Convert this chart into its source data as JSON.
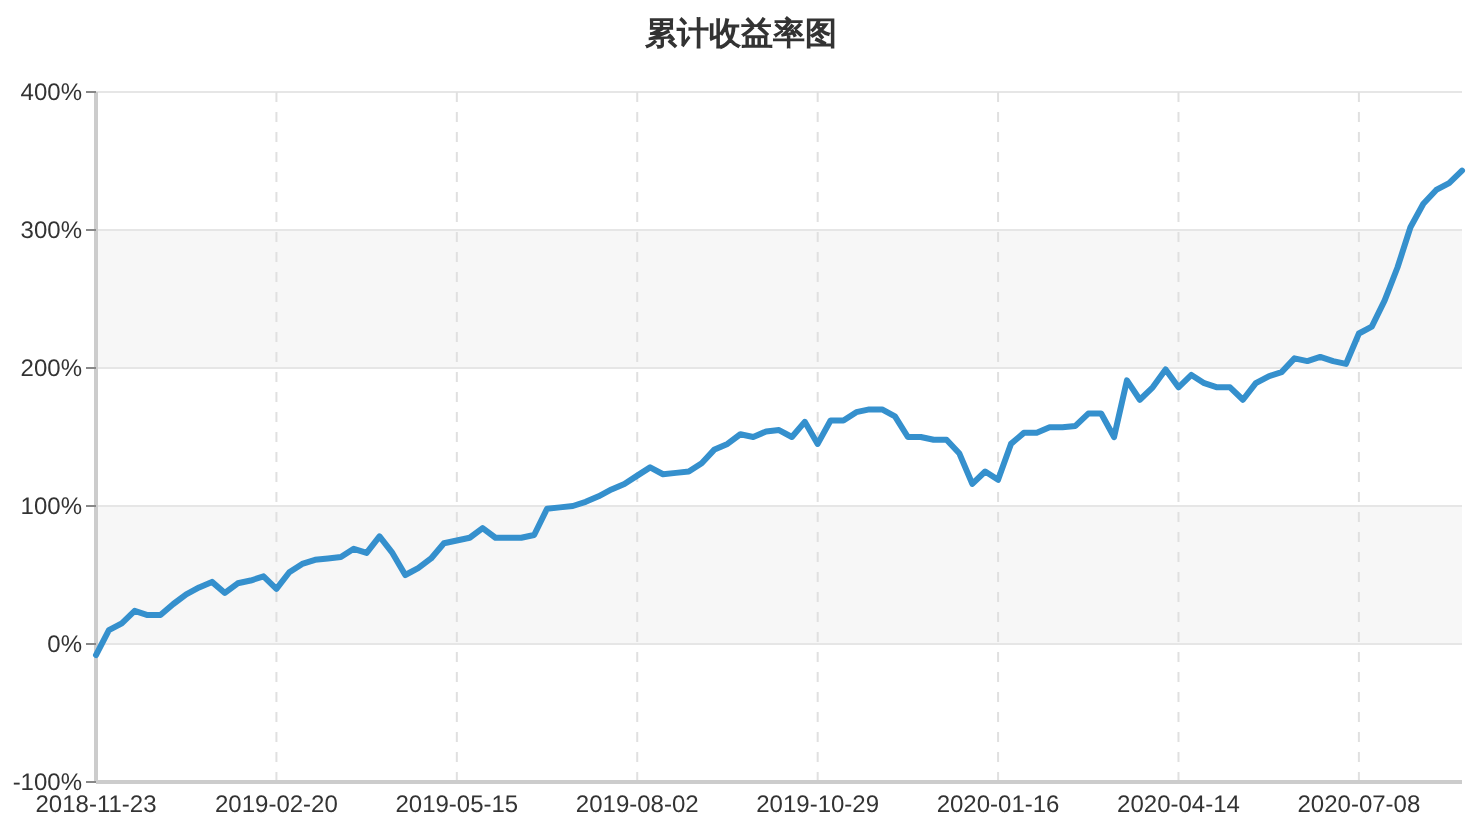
{
  "chart_data": {
    "type": "line",
    "title": "累计收益率图",
    "categories": [
      "2018-11-23",
      null,
      null,
      null,
      null,
      null,
      null,
      null,
      null,
      null,
      null,
      null,
      null,
      null,
      "2019-02-20",
      null,
      null,
      null,
      null,
      null,
      null,
      null,
      null,
      null,
      null,
      null,
      null,
      null,
      "2019-05-15",
      null,
      null,
      null,
      null,
      null,
      null,
      null,
      null,
      null,
      null,
      null,
      null,
      null,
      "2019-08-02",
      null,
      null,
      null,
      null,
      null,
      null,
      null,
      null,
      null,
      null,
      null,
      null,
      null,
      "2019-10-29",
      null,
      null,
      null,
      null,
      null,
      null,
      null,
      null,
      null,
      null,
      null,
      null,
      null,
      "2020-01-16",
      null,
      null,
      null,
      null,
      null,
      null,
      null,
      null,
      null,
      null,
      null,
      null,
      null,
      "2020-04-14",
      null,
      null,
      null,
      null,
      null,
      null,
      null,
      null,
      null,
      null,
      null,
      null,
      null,
      "2020-07-08",
      null,
      null,
      null,
      null,
      null,
      null,
      null,
      null
    ],
    "series": [
      {
        "color": "#3590cd",
        "values": [
          -8,
          10,
          15,
          24,
          21,
          21,
          29,
          36,
          41,
          45,
          37,
          44,
          46,
          49,
          40,
          52,
          58,
          61,
          62,
          63,
          69,
          66,
          78,
          66,
          50,
          55,
          62,
          73,
          75,
          77,
          84,
          77,
          77,
          77,
          79,
          98,
          99,
          100,
          103,
          107,
          112,
          116,
          122,
          128,
          123,
          124,
          125,
          131,
          141,
          145,
          152,
          150,
          154,
          155,
          150,
          161,
          145,
          162,
          162,
          168,
          170,
          170,
          165,
          150,
          150,
          148,
          148,
          138,
          116,
          125,
          119,
          145,
          153,
          153,
          157,
          157,
          158,
          167,
          167,
          150,
          191,
          177,
          186,
          199,
          186,
          195,
          189,
          186,
          186,
          177,
          189,
          194,
          197,
          207,
          205,
          208,
          205,
          203,
          225,
          230,
          249,
          273,
          302,
          319,
          329,
          334,
          343
        ]
      }
    ],
    "ylim": [
      -100,
      400
    ],
    "yticks": [
      {
        "value": -100,
        "label": "-100%"
      },
      {
        "value": 0,
        "label": "0%"
      },
      {
        "value": 100,
        "label": "100%"
      },
      {
        "value": 200,
        "label": "200%"
      },
      {
        "value": 300,
        "label": "300%"
      },
      {
        "value": 400,
        "label": "400%"
      }
    ],
    "grid": true
  }
}
